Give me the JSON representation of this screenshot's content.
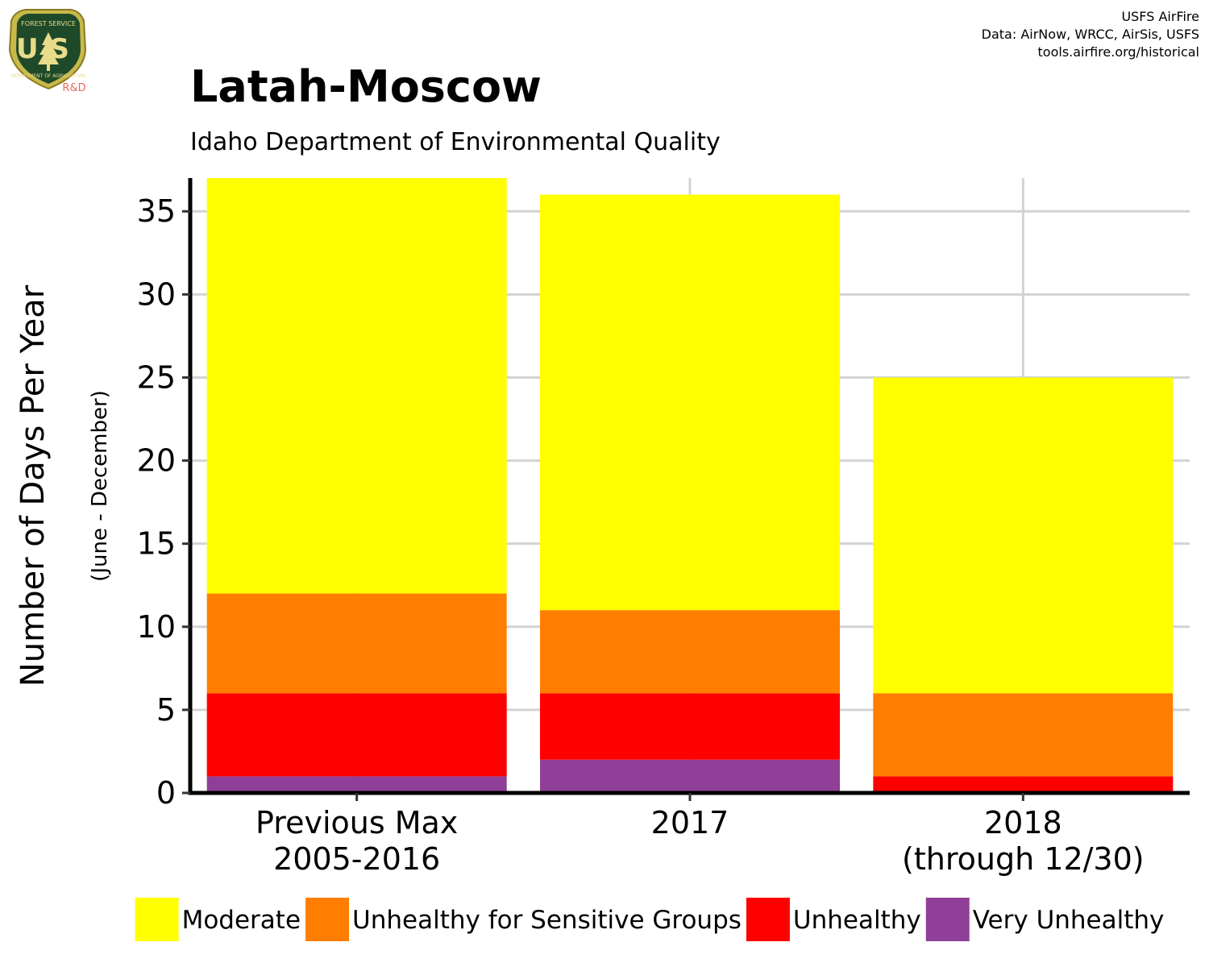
{
  "logo": {
    "top_text": "FOREST SERVICE",
    "letters": "US",
    "bottom_text": "DEPARTMENT OF AGRICULTURE",
    "badge": "R&D"
  },
  "credits": [
    "USFS AirFire",
    "Data: AirNow, WRCC, AirSis, USFS",
    "tools.airfire.org/historical"
  ],
  "chart_data": {
    "type": "bar",
    "stacked": true,
    "title": "Latah-Moscow",
    "subtitle": "Idaho Department of Environmental Quality",
    "ylabel": "Number of Days Per Year",
    "ylabel_sub": "(June - December)",
    "xlabel": "",
    "ylim": [
      0,
      37
    ],
    "yticks": [
      0,
      5,
      10,
      15,
      20,
      25,
      30,
      35
    ],
    "grid": true,
    "legend_position": "bottom",
    "categories": [
      [
        "Previous Max",
        "2005-2016"
      ],
      [
        "2017"
      ],
      [
        "2018",
        "(through 12/30)"
      ]
    ],
    "series": [
      {
        "name": "Very Unhealthy",
        "color": "#8F3F97",
        "values": [
          1,
          2,
          0
        ]
      },
      {
        "name": "Unhealthy",
        "color": "#FF0000",
        "values": [
          5,
          4,
          1
        ]
      },
      {
        "name": "Unhealthy for Sensitive Groups",
        "color": "#FF7E00",
        "values": [
          6,
          5,
          5
        ]
      },
      {
        "name": "Moderate",
        "color": "#FFFF00",
        "values": [
          25,
          25,
          19
        ]
      }
    ],
    "legend_order": [
      "Moderate",
      "Unhealthy for Sensitive Groups",
      "Unhealthy",
      "Very Unhealthy"
    ]
  }
}
